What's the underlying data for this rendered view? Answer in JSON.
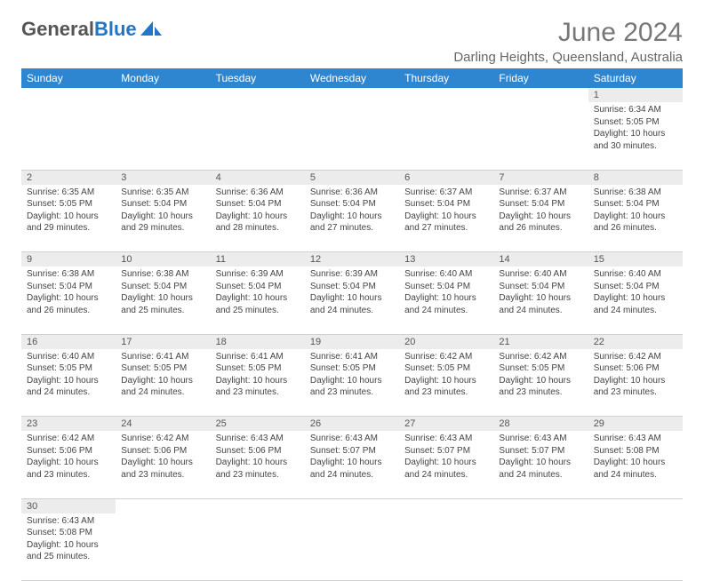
{
  "brand": {
    "general": "General",
    "blue": "Blue",
    "sail_color": "#2176c7"
  },
  "title": {
    "month": "June 2024",
    "location": "Darling Heights, Queensland, Australia"
  },
  "theme": {
    "header_bg": "#2e86d0",
    "header_fg": "#ffffff",
    "daynum_bg": "#ececec",
    "border": "#d0d0d0"
  },
  "weekdays": [
    "Sunday",
    "Monday",
    "Tuesday",
    "Wednesday",
    "Thursday",
    "Friday",
    "Saturday"
  ],
  "first_weekday_index": 6,
  "days": [
    {
      "n": 1,
      "sunrise": "6:34 AM",
      "sunset": "5:05 PM",
      "daylight": "10 hours and 30 minutes."
    },
    {
      "n": 2,
      "sunrise": "6:35 AM",
      "sunset": "5:05 PM",
      "daylight": "10 hours and 29 minutes."
    },
    {
      "n": 3,
      "sunrise": "6:35 AM",
      "sunset": "5:04 PM",
      "daylight": "10 hours and 29 minutes."
    },
    {
      "n": 4,
      "sunrise": "6:36 AM",
      "sunset": "5:04 PM",
      "daylight": "10 hours and 28 minutes."
    },
    {
      "n": 5,
      "sunrise": "6:36 AM",
      "sunset": "5:04 PM",
      "daylight": "10 hours and 27 minutes."
    },
    {
      "n": 6,
      "sunrise": "6:37 AM",
      "sunset": "5:04 PM",
      "daylight": "10 hours and 27 minutes."
    },
    {
      "n": 7,
      "sunrise": "6:37 AM",
      "sunset": "5:04 PM",
      "daylight": "10 hours and 26 minutes."
    },
    {
      "n": 8,
      "sunrise": "6:38 AM",
      "sunset": "5:04 PM",
      "daylight": "10 hours and 26 minutes."
    },
    {
      "n": 9,
      "sunrise": "6:38 AM",
      "sunset": "5:04 PM",
      "daylight": "10 hours and 26 minutes."
    },
    {
      "n": 10,
      "sunrise": "6:38 AM",
      "sunset": "5:04 PM",
      "daylight": "10 hours and 25 minutes."
    },
    {
      "n": 11,
      "sunrise": "6:39 AM",
      "sunset": "5:04 PM",
      "daylight": "10 hours and 25 minutes."
    },
    {
      "n": 12,
      "sunrise": "6:39 AM",
      "sunset": "5:04 PM",
      "daylight": "10 hours and 24 minutes."
    },
    {
      "n": 13,
      "sunrise": "6:40 AM",
      "sunset": "5:04 PM",
      "daylight": "10 hours and 24 minutes."
    },
    {
      "n": 14,
      "sunrise": "6:40 AM",
      "sunset": "5:04 PM",
      "daylight": "10 hours and 24 minutes."
    },
    {
      "n": 15,
      "sunrise": "6:40 AM",
      "sunset": "5:04 PM",
      "daylight": "10 hours and 24 minutes."
    },
    {
      "n": 16,
      "sunrise": "6:40 AM",
      "sunset": "5:05 PM",
      "daylight": "10 hours and 24 minutes."
    },
    {
      "n": 17,
      "sunrise": "6:41 AM",
      "sunset": "5:05 PM",
      "daylight": "10 hours and 24 minutes."
    },
    {
      "n": 18,
      "sunrise": "6:41 AM",
      "sunset": "5:05 PM",
      "daylight": "10 hours and 23 minutes."
    },
    {
      "n": 19,
      "sunrise": "6:41 AM",
      "sunset": "5:05 PM",
      "daylight": "10 hours and 23 minutes."
    },
    {
      "n": 20,
      "sunrise": "6:42 AM",
      "sunset": "5:05 PM",
      "daylight": "10 hours and 23 minutes."
    },
    {
      "n": 21,
      "sunrise": "6:42 AM",
      "sunset": "5:05 PM",
      "daylight": "10 hours and 23 minutes."
    },
    {
      "n": 22,
      "sunrise": "6:42 AM",
      "sunset": "5:06 PM",
      "daylight": "10 hours and 23 minutes."
    },
    {
      "n": 23,
      "sunrise": "6:42 AM",
      "sunset": "5:06 PM",
      "daylight": "10 hours and 23 minutes."
    },
    {
      "n": 24,
      "sunrise": "6:42 AM",
      "sunset": "5:06 PM",
      "daylight": "10 hours and 23 minutes."
    },
    {
      "n": 25,
      "sunrise": "6:43 AM",
      "sunset": "5:06 PM",
      "daylight": "10 hours and 23 minutes."
    },
    {
      "n": 26,
      "sunrise": "6:43 AM",
      "sunset": "5:07 PM",
      "daylight": "10 hours and 24 minutes."
    },
    {
      "n": 27,
      "sunrise": "6:43 AM",
      "sunset": "5:07 PM",
      "daylight": "10 hours and 24 minutes."
    },
    {
      "n": 28,
      "sunrise": "6:43 AM",
      "sunset": "5:07 PM",
      "daylight": "10 hours and 24 minutes."
    },
    {
      "n": 29,
      "sunrise": "6:43 AM",
      "sunset": "5:08 PM",
      "daylight": "10 hours and 24 minutes."
    },
    {
      "n": 30,
      "sunrise": "6:43 AM",
      "sunset": "5:08 PM",
      "daylight": "10 hours and 25 minutes."
    }
  ],
  "labels": {
    "sunrise": "Sunrise:",
    "sunset": "Sunset:",
    "daylight": "Daylight:"
  }
}
